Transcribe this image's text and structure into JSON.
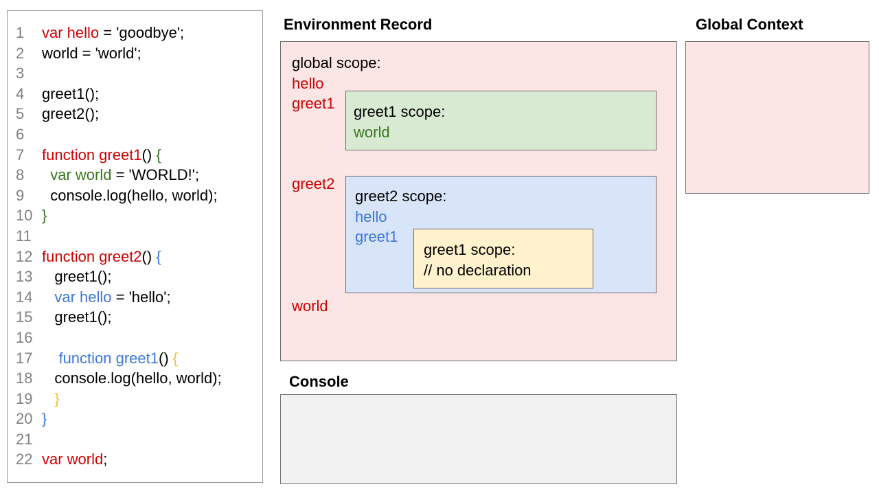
{
  "colors": {
    "red": "#cc0000",
    "green": "#38761d",
    "blue": "#3c78d8",
    "gold": "#f1c232",
    "code_black": "#000000",
    "line_number_gray": "#808080",
    "pink_fill": "#fbe5e5",
    "green_fill": "#d9ead3",
    "blue_fill": "#d8e4f7",
    "yellow_fill": "#fff2cc",
    "console_fill": "#f2f2f2",
    "border_gray": "#6b6b6b"
  },
  "code": {
    "lines": [
      {
        "num": "1",
        "segments": [
          {
            "t": "var hello",
            "c": "red"
          },
          {
            "t": " = 'goodbye';",
            "c": "k"
          }
        ]
      },
      {
        "num": "2",
        "segments": [
          {
            "t": "world = 'world';",
            "c": "k"
          }
        ]
      },
      {
        "num": "3",
        "segments": []
      },
      {
        "num": "4",
        "segments": [
          {
            "t": "greet1();",
            "c": "k"
          }
        ]
      },
      {
        "num": "5",
        "segments": [
          {
            "t": "greet2();",
            "c": "k"
          }
        ]
      },
      {
        "num": "6",
        "segments": []
      },
      {
        "num": "7",
        "segments": [
          {
            "t": "function greet1",
            "c": "red"
          },
          {
            "t": "() ",
            "c": "k"
          },
          {
            "t": "{",
            "c": "green"
          }
        ]
      },
      {
        "num": "8",
        "segments": [
          {
            "t": "  ",
            "c": "k"
          },
          {
            "t": "var world",
            "c": "green"
          },
          {
            "t": " = 'WORLD!';",
            "c": "k"
          }
        ]
      },
      {
        "num": "9",
        "segments": [
          {
            "t": "  console.log(hello, world);",
            "c": "k"
          }
        ]
      },
      {
        "num": "10",
        "segments": [
          {
            "t": "}",
            "c": "green"
          }
        ]
      },
      {
        "num": "11",
        "segments": []
      },
      {
        "num": "12",
        "segments": [
          {
            "t": "function greet2",
            "c": "red"
          },
          {
            "t": "() ",
            "c": "k"
          },
          {
            "t": "{",
            "c": "blue"
          }
        ]
      },
      {
        "num": "13",
        "segments": [
          {
            "t": "   greet1();",
            "c": "k"
          }
        ]
      },
      {
        "num": "14",
        "segments": [
          {
            "t": "   ",
            "c": "k"
          },
          {
            "t": "var hello",
            "c": "blue"
          },
          {
            "t": " = 'hello';",
            "c": "k"
          }
        ]
      },
      {
        "num": "15",
        "segments": [
          {
            "t": "   greet1();",
            "c": "k"
          }
        ]
      },
      {
        "num": "16",
        "segments": []
      },
      {
        "num": "17",
        "segments": [
          {
            "t": "    ",
            "c": "k"
          },
          {
            "t": "function greet1",
            "c": "blue"
          },
          {
            "t": "() ",
            "c": "k"
          },
          {
            "t": "{",
            "c": "gold"
          }
        ]
      },
      {
        "num": "18",
        "segments": [
          {
            "t": "   console.log(hello, world);",
            "c": "k"
          }
        ]
      },
      {
        "num": "19",
        "segments": [
          {
            "t": "   }",
            "c": "gold"
          }
        ]
      },
      {
        "num": "20",
        "segments": [
          {
            "t": "}",
            "c": "blue"
          }
        ]
      },
      {
        "num": "21",
        "segments": []
      },
      {
        "num": "22",
        "segments": [
          {
            "t": "var world",
            "c": "red"
          },
          {
            "t": ";",
            "c": "k"
          }
        ]
      }
    ]
  },
  "environment_record": {
    "title": "Environment Record",
    "global_scope_label": "global scope:",
    "global_vars": [
      "hello",
      "greet1",
      "greet2",
      "world"
    ],
    "greet1_scope": {
      "label": "greet1 scope:",
      "vars": [
        "world"
      ]
    },
    "greet2_scope": {
      "label": "greet2 scope:",
      "vars": [
        "hello",
        "greet1"
      ],
      "inner_greet1_scope": {
        "label": "greet1 scope:",
        "comment": "// no declaration"
      }
    }
  },
  "global_context": {
    "title": "Global Context"
  },
  "console_panel": {
    "title": "Console"
  }
}
